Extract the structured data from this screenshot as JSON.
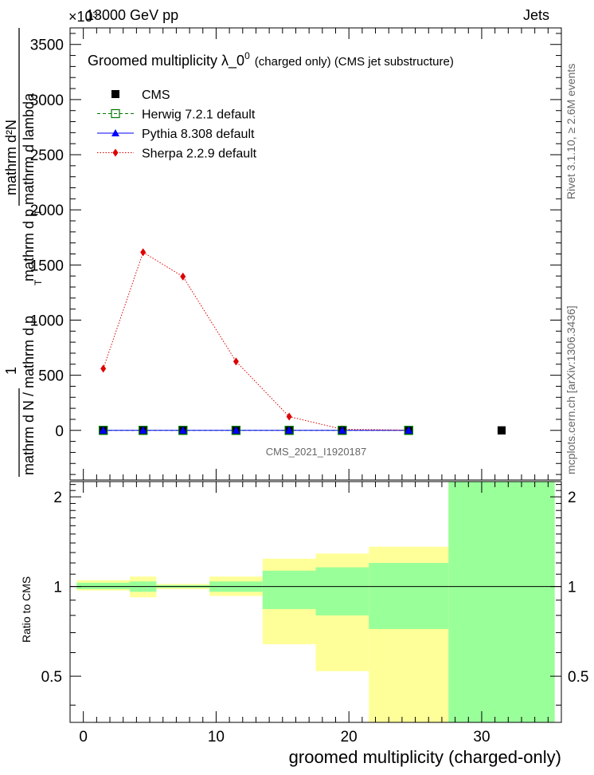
{
  "header": {
    "left": "13000 GeV pp",
    "right": "Jets",
    "exponent": "×10³"
  },
  "side": {
    "rivet": "Rivet 3.1.10, ≥ 2.6M events",
    "mcplots": "mcplots.cern.ch [arXiv:1306.3436]"
  },
  "watermark": "CMS_2021_I1920187",
  "chart_data": [
    {
      "type": "line",
      "title_main": "Groomed multiplicity  λ_0",
      "title_sup": "0",
      "title_small": "(charged only) (CMS jet substructure)",
      "ylabel_top": "mathrm d²N",
      "ylabel_top2": "mathrm d p  mathrm d lambda",
      "ylabel_top_sub": "T",
      "ylabel_mid": "1",
      "ylabel_bottom": "mathrm d N / mathrm d p",
      "ylabel_bottom_sub": "T",
      "ylim": [
        -450,
        3650
      ],
      "yticks": [
        0,
        500,
        1000,
        1500,
        2000,
        2500,
        3000,
        3500
      ],
      "yticklabels": [
        "0",
        "500",
        "1000",
        "1500",
        "2000",
        "2500",
        "3000",
        "3500"
      ],
      "xlim": [
        -1,
        36
      ],
      "legend": [
        {
          "name": "CMS",
          "color": "#000000",
          "marker": "square-filled",
          "line": "none"
        },
        {
          "name": "Herwig 7.2.1 default",
          "color": "#007700",
          "marker": "square-open",
          "line": "dashed"
        },
        {
          "name": "Pythia 8.308 default",
          "color": "#0000ff",
          "marker": "triangle",
          "line": "solid"
        },
        {
          "name": "Sherpa 2.2.9 default",
          "color": "#dd0000",
          "marker": "diamond",
          "line": "dotted"
        }
      ],
      "series": [
        {
          "name": "CMS",
          "x": [
            1.5,
            4.5,
            7.5,
            11.5,
            15.5,
            19.5,
            24.5,
            31.5
          ],
          "values": [
            0,
            0,
            0,
            0,
            0,
            0,
            0,
            0
          ]
        },
        {
          "name": "Herwig 7.2.1 default",
          "x": [
            1.5,
            4.5,
            7.5,
            11.5,
            15.5,
            19.5,
            24.5
          ],
          "values": [
            0,
            0,
            0,
            0,
            0,
            0,
            0
          ]
        },
        {
          "name": "Pythia 8.308 default",
          "x": [
            1.5,
            4.5,
            7.5,
            11.5,
            15.5,
            19.5,
            24.5
          ],
          "values": [
            0,
            0,
            0,
            0,
            0,
            0,
            0
          ]
        },
        {
          "name": "Sherpa 2.2.9 default",
          "x": [
            1.5,
            4.5,
            7.5,
            11.5,
            15.5,
            19.5,
            24.5
          ],
          "values": [
            560,
            1615,
            1395,
            625,
            125,
            10,
            2
          ]
        }
      ]
    },
    {
      "type": "area",
      "ylabel": "Ratio to CMS",
      "xlabel": "groomed multiplicity (charged-only)",
      "xlim": [
        -1,
        36
      ],
      "ylim": [
        0.35,
        2.25
      ],
      "xticks": [
        0,
        10,
        20,
        30
      ],
      "xticklabels": [
        "0",
        "10",
        "20",
        "30"
      ],
      "yticks": [
        0.5,
        1,
        2
      ],
      "yticklabels": [
        "0.5",
        "1",
        "2"
      ],
      "bins": [
        {
          "lo": -0.5,
          "hi": 3.5,
          "y_lo": 0.97,
          "y_hi": 1.05,
          "g_lo": 0.98,
          "g_hi": 1.03
        },
        {
          "lo": 3.5,
          "hi": 5.5,
          "y_lo": 0.92,
          "y_hi": 1.08,
          "g_lo": 0.96,
          "g_hi": 1.04
        },
        {
          "lo": 5.5,
          "hi": 9.5,
          "y_lo": 0.98,
          "y_hi": 1.02,
          "g_lo": 0.99,
          "g_hi": 1.01
        },
        {
          "lo": 9.5,
          "hi": 13.5,
          "y_lo": 0.93,
          "y_hi": 1.08,
          "g_lo": 0.96,
          "g_hi": 1.04
        },
        {
          "lo": 13.5,
          "hi": 17.5,
          "y_lo": 0.64,
          "y_hi": 1.24,
          "g_lo": 0.84,
          "g_hi": 1.13
        },
        {
          "lo": 17.5,
          "hi": 21.5,
          "y_lo": 0.52,
          "y_hi": 1.29,
          "g_lo": 0.8,
          "g_hi": 1.16
        },
        {
          "lo": 21.5,
          "hi": 27.5,
          "y_lo": 0.35,
          "y_hi": 1.36,
          "g_lo": 0.72,
          "g_hi": 1.2
        },
        {
          "lo": 27.5,
          "hi": 35.5,
          "y_lo": 0.35,
          "y_hi": 2.25,
          "g_lo": 0.35,
          "g_hi": 2.25
        }
      ]
    }
  ]
}
